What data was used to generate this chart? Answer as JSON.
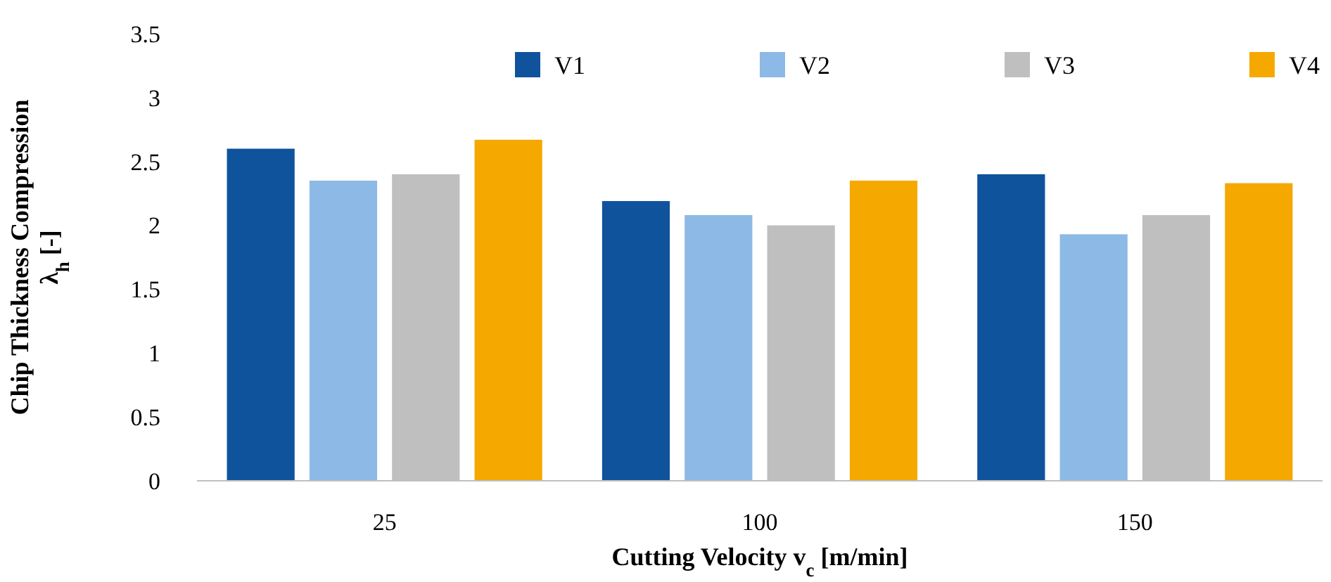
{
  "chart_data": {
    "type": "bar",
    "xlabel": "Cutting Velocity v$_{c}$ [m/min]",
    "ylabel": "Chip Thickness Compression λ$_{h}$ [-]",
    "categories": [
      "25",
      "100",
      "150"
    ],
    "series": [
      {
        "name": "V1",
        "color": "#0f539c",
        "values": [
          2.6,
          2.19,
          2.4
        ]
      },
      {
        "name": "V2",
        "color": "#8db9e6",
        "values": [
          2.35,
          2.08,
          1.93
        ]
      },
      {
        "name": "V3",
        "color": "#bfbfbf",
        "values": [
          2.4,
          2.0,
          2.08
        ]
      },
      {
        "name": "V4",
        "color": "#f5a800",
        "values": [
          2.67,
          2.35,
          2.33
        ]
      }
    ],
    "ylim": [
      0,
      3.5
    ],
    "yticks": [
      0,
      0.5,
      1,
      1.5,
      2,
      2.5,
      3,
      3.5
    ],
    "grid": false,
    "legend": "top right"
  }
}
